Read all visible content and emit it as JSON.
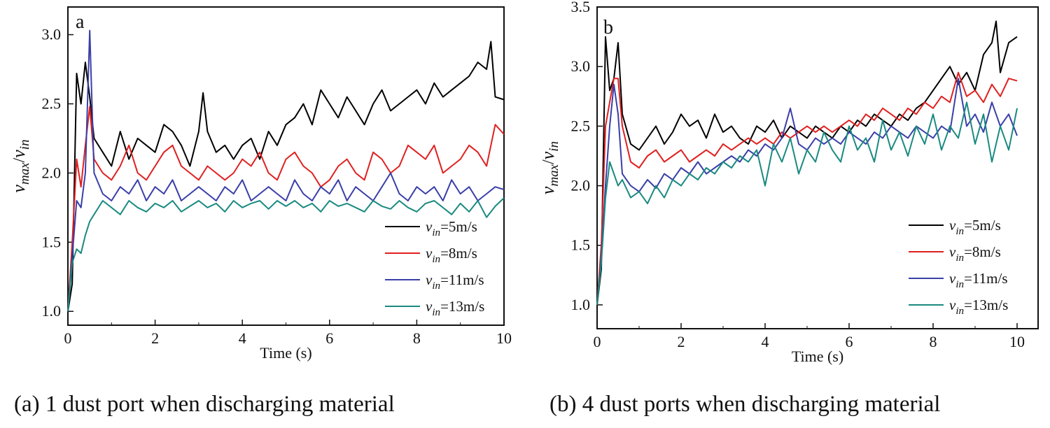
{
  "captions": {
    "a": "(a) 1 dust port when discharging material",
    "b": "(b) 4 dust ports when discharging material"
  },
  "chart_data": [
    {
      "type": "line",
      "panel_label": "a",
      "xlabel": "Time (s)",
      "ylabel_base": "v",
      "ylabel_num_sub": "max",
      "ylabel_den_sub": "in",
      "xlim": [
        0,
        10
      ],
      "ylim": [
        0.9,
        3.2
      ],
      "xticks": [
        0,
        2,
        4,
        6,
        8,
        10
      ],
      "yticks": [
        1.0,
        1.5,
        2.0,
        2.5,
        3.0
      ],
      "ytick_labels": [
        "1.0",
        "1.5",
        "2.0",
        "2.5",
        "3.0"
      ],
      "grid": false,
      "legend_position": "bottom-right",
      "series": [
        {
          "name": "5m/s",
          "legend_prefix": "v",
          "legend_sub": "in",
          "legend_value": "=5m/s",
          "color": "#000000",
          "x": [
            0,
            0.1,
            0.2,
            0.3,
            0.4,
            0.5,
            0.6,
            0.8,
            1,
            1.2,
            1.4,
            1.6,
            1.8,
            2,
            2.2,
            2.4,
            2.6,
            2.8,
            3,
            3.1,
            3.2,
            3.4,
            3.6,
            3.8,
            4,
            4.2,
            4.4,
            4.6,
            4.8,
            5,
            5.2,
            5.4,
            5.6,
            5.8,
            6,
            6.2,
            6.4,
            6.6,
            6.8,
            7,
            7.2,
            7.4,
            7.6,
            7.8,
            8,
            8.2,
            8.4,
            8.6,
            8.8,
            9,
            9.2,
            9.4,
            9.6,
            9.7,
            9.8,
            10
          ],
          "y": [
            1.0,
            1.2,
            2.72,
            2.5,
            2.8,
            2.55,
            2.25,
            2.15,
            2.05,
            2.3,
            2.1,
            2.25,
            2.2,
            2.15,
            2.35,
            2.3,
            2.2,
            2.05,
            2.3,
            2.58,
            2.3,
            2.15,
            2.2,
            2.1,
            2.2,
            2.25,
            2.1,
            2.3,
            2.2,
            2.35,
            2.4,
            2.5,
            2.35,
            2.6,
            2.5,
            2.4,
            2.55,
            2.45,
            2.35,
            2.5,
            2.6,
            2.45,
            2.5,
            2.55,
            2.6,
            2.5,
            2.65,
            2.55,
            2.6,
            2.65,
            2.7,
            2.8,
            2.75,
            2.95,
            2.55,
            2.53
          ]
        },
        {
          "name": "8m/s",
          "legend_prefix": "v",
          "legend_sub": "in",
          "legend_value": "=8m/s",
          "color": "#e02020",
          "x": [
            0,
            0.1,
            0.2,
            0.3,
            0.4,
            0.5,
            0.6,
            0.8,
            1,
            1.2,
            1.4,
            1.6,
            1.8,
            2,
            2.2,
            2.4,
            2.6,
            2.8,
            3,
            3.2,
            3.4,
            3.6,
            3.8,
            4,
            4.2,
            4.4,
            4.6,
            4.8,
            5,
            5.2,
            5.4,
            5.6,
            5.8,
            6,
            6.2,
            6.4,
            6.6,
            6.8,
            7,
            7.2,
            7.4,
            7.6,
            7.8,
            8,
            8.2,
            8.4,
            8.6,
            8.8,
            9,
            9.2,
            9.4,
            9.6,
            9.8,
            10
          ],
          "y": [
            1.0,
            1.5,
            2.1,
            1.9,
            2.2,
            2.48,
            2.1,
            2.0,
            1.95,
            2.05,
            2.2,
            2.0,
            1.95,
            2.05,
            2.15,
            2.2,
            2.05,
            2.0,
            1.95,
            2.05,
            2.0,
            1.95,
            2.0,
            2.1,
            2.05,
            2.15,
            2.0,
            1.95,
            2.1,
            2.15,
            2.05,
            2.0,
            1.9,
            1.95,
            2.05,
            2.1,
            2.0,
            1.95,
            2.15,
            2.1,
            2.0,
            2.05,
            2.2,
            2.15,
            2.1,
            2.2,
            2.0,
            2.05,
            2.1,
            2.2,
            2.15,
            2.05,
            2.35,
            2.28
          ]
        },
        {
          "name": "11m/s",
          "legend_prefix": "v",
          "legend_sub": "in",
          "legend_value": "=11m/s",
          "color": "#3a3fa8",
          "x": [
            0,
            0.1,
            0.2,
            0.3,
            0.4,
            0.5,
            0.6,
            0.8,
            1,
            1.2,
            1.4,
            1.6,
            1.8,
            2,
            2.2,
            2.4,
            2.6,
            2.8,
            3,
            3.2,
            3.4,
            3.6,
            3.8,
            4,
            4.2,
            4.4,
            4.6,
            4.8,
            5,
            5.2,
            5.4,
            5.6,
            5.8,
            6,
            6.2,
            6.4,
            6.6,
            6.8,
            7,
            7.2,
            7.4,
            7.6,
            7.8,
            8,
            8.2,
            8.4,
            8.6,
            8.8,
            9,
            9.2,
            9.4,
            9.6,
            9.8,
            10
          ],
          "y": [
            1.0,
            1.4,
            1.8,
            1.75,
            2.0,
            3.03,
            2.0,
            1.85,
            1.8,
            1.9,
            1.85,
            1.95,
            1.8,
            1.9,
            1.85,
            1.95,
            1.8,
            1.85,
            1.9,
            1.85,
            1.8,
            1.9,
            1.85,
            1.95,
            1.8,
            1.85,
            1.9,
            1.85,
            1.8,
            1.95,
            1.85,
            1.8,
            1.9,
            1.85,
            1.95,
            1.8,
            1.9,
            1.85,
            1.8,
            1.9,
            2.0,
            1.85,
            1.8,
            1.9,
            1.85,
            1.9,
            1.8,
            1.95,
            1.85,
            1.9,
            1.8,
            1.85,
            1.9,
            1.88
          ]
        },
        {
          "name": "13m/s",
          "legend_prefix": "v",
          "legend_sub": "in",
          "legend_value": "=13m/s",
          "color": "#1a8a80",
          "x": [
            0,
            0.1,
            0.2,
            0.3,
            0.4,
            0.5,
            0.6,
            0.8,
            1,
            1.2,
            1.4,
            1.6,
            1.8,
            2,
            2.2,
            2.4,
            2.6,
            2.8,
            3,
            3.2,
            3.4,
            3.6,
            3.8,
            4,
            4.2,
            4.4,
            4.6,
            4.8,
            5,
            5.2,
            5.4,
            5.6,
            5.8,
            6,
            6.2,
            6.4,
            6.6,
            6.8,
            7,
            7.2,
            7.4,
            7.6,
            7.8,
            8,
            8.2,
            8.4,
            8.6,
            8.8,
            9,
            9.2,
            9.4,
            9.6,
            9.8,
            10
          ],
          "y": [
            1.0,
            1.35,
            1.45,
            1.42,
            1.55,
            1.65,
            1.7,
            1.8,
            1.75,
            1.7,
            1.8,
            1.75,
            1.72,
            1.78,
            1.75,
            1.8,
            1.72,
            1.76,
            1.8,
            1.75,
            1.78,
            1.72,
            1.8,
            1.75,
            1.78,
            1.8,
            1.74,
            1.8,
            1.76,
            1.8,
            1.75,
            1.78,
            1.72,
            1.8,
            1.76,
            1.78,
            1.75,
            1.72,
            1.8,
            1.76,
            1.74,
            1.8,
            1.75,
            1.72,
            1.78,
            1.8,
            1.75,
            1.7,
            1.78,
            1.72,
            1.8,
            1.68,
            1.76,
            1.82
          ]
        }
      ]
    },
    {
      "type": "line",
      "panel_label": "b",
      "xlabel": "Time (s)",
      "ylabel_base": "v",
      "ylabel_num_sub": "max",
      "ylabel_den_sub": "in",
      "xlim": [
        0,
        10.5
      ],
      "ylim": [
        0.8,
        3.5
      ],
      "xticks": [
        0,
        2,
        4,
        6,
        8,
        10
      ],
      "yticks": [
        1.0,
        1.5,
        2.0,
        2.5,
        3.0,
        3.5
      ],
      "ytick_labels": [
        "1.0",
        "1.5",
        "2.0",
        "2.5",
        "3.0",
        "3.5"
      ],
      "grid": false,
      "legend_position": "bottom-right",
      "series": [
        {
          "name": "5m/s",
          "legend_prefix": "v",
          "legend_sub": "in",
          "legend_value": "=5m/s",
          "color": "#000000",
          "x": [
            0,
            0.1,
            0.2,
            0.3,
            0.4,
            0.5,
            0.6,
            0.8,
            1,
            1.2,
            1.4,
            1.6,
            1.8,
            2,
            2.2,
            2.4,
            2.6,
            2.8,
            3,
            3.2,
            3.4,
            3.6,
            3.8,
            4,
            4.2,
            4.4,
            4.6,
            4.8,
            5,
            5.2,
            5.4,
            5.6,
            5.8,
            6,
            6.2,
            6.4,
            6.6,
            6.8,
            7,
            7.2,
            7.4,
            7.6,
            7.8,
            8,
            8.2,
            8.4,
            8.6,
            8.8,
            9,
            9.2,
            9.4,
            9.5,
            9.6,
            9.8,
            10
          ],
          "y": [
            1.0,
            1.3,
            3.25,
            2.8,
            2.9,
            3.2,
            2.6,
            2.35,
            2.3,
            2.4,
            2.5,
            2.35,
            2.45,
            2.6,
            2.5,
            2.55,
            2.4,
            2.6,
            2.45,
            2.5,
            2.4,
            2.35,
            2.5,
            2.45,
            2.55,
            2.4,
            2.5,
            2.45,
            2.4,
            2.5,
            2.45,
            2.4,
            2.5,
            2.45,
            2.55,
            2.5,
            2.6,
            2.55,
            2.5,
            2.6,
            2.55,
            2.65,
            2.7,
            2.8,
            2.9,
            3.0,
            2.85,
            2.95,
            2.8,
            3.1,
            3.2,
            3.38,
            2.95,
            3.2,
            3.25
          ]
        },
        {
          "name": "8m/s",
          "legend_prefix": "v",
          "legend_sub": "in",
          "legend_value": "=8m/s",
          "color": "#e02020",
          "x": [
            0,
            0.1,
            0.2,
            0.3,
            0.4,
            0.5,
            0.6,
            0.8,
            1,
            1.2,
            1.4,
            1.6,
            1.8,
            2,
            2.2,
            2.4,
            2.6,
            2.8,
            3,
            3.2,
            3.4,
            3.6,
            3.8,
            4,
            4.2,
            4.4,
            4.6,
            4.8,
            5,
            5.2,
            5.4,
            5.6,
            5.8,
            6,
            6.2,
            6.4,
            6.6,
            6.8,
            7,
            7.2,
            7.4,
            7.6,
            7.8,
            8,
            8.2,
            8.4,
            8.6,
            8.8,
            9,
            9.2,
            9.4,
            9.6,
            9.8,
            10
          ],
          "y": [
            1.0,
            1.5,
            2.5,
            2.7,
            2.9,
            2.9,
            2.5,
            2.2,
            2.15,
            2.25,
            2.3,
            2.2,
            2.25,
            2.3,
            2.2,
            2.25,
            2.3,
            2.25,
            2.35,
            2.3,
            2.35,
            2.4,
            2.35,
            2.4,
            2.35,
            2.45,
            2.4,
            2.45,
            2.5,
            2.45,
            2.5,
            2.45,
            2.5,
            2.55,
            2.5,
            2.6,
            2.55,
            2.65,
            2.6,
            2.55,
            2.65,
            2.6,
            2.7,
            2.65,
            2.75,
            2.7,
            2.95,
            2.75,
            2.8,
            2.7,
            2.85,
            2.75,
            2.9,
            2.88
          ]
        },
        {
          "name": "11m/s",
          "legend_prefix": "v",
          "legend_sub": "in",
          "legend_value": "=11m/s",
          "color": "#3a3fa8",
          "x": [
            0,
            0.1,
            0.2,
            0.3,
            0.4,
            0.5,
            0.6,
            0.8,
            1,
            1.2,
            1.4,
            1.6,
            1.8,
            2,
            2.2,
            2.4,
            2.6,
            2.8,
            3,
            3.2,
            3.4,
            3.6,
            3.8,
            4,
            4.2,
            4.4,
            4.6,
            4.8,
            5,
            5.2,
            5.4,
            5.6,
            5.8,
            6,
            6.2,
            6.4,
            6.6,
            6.8,
            7,
            7.2,
            7.4,
            7.6,
            7.8,
            8,
            8.2,
            8.4,
            8.6,
            8.8,
            9,
            9.2,
            9.4,
            9.6,
            9.8,
            10
          ],
          "y": [
            1.0,
            1.4,
            2.0,
            2.5,
            2.85,
            2.6,
            2.1,
            2.0,
            1.95,
            2.05,
            1.98,
            2.1,
            2.05,
            2.15,
            2.1,
            2.2,
            2.1,
            2.15,
            2.2,
            2.25,
            2.2,
            2.3,
            2.25,
            2.35,
            2.3,
            2.4,
            2.65,
            2.35,
            2.3,
            2.4,
            2.35,
            2.4,
            2.35,
            2.45,
            2.4,
            2.35,
            2.45,
            2.4,
            2.5,
            2.45,
            2.4,
            2.5,
            2.45,
            2.4,
            2.5,
            2.45,
            2.9,
            2.5,
            2.6,
            2.45,
            2.7,
            2.5,
            2.6,
            2.42
          ]
        },
        {
          "name": "13m/s",
          "legend_prefix": "v",
          "legend_sub": "in",
          "legend_value": "=13m/s",
          "color": "#1a8a80",
          "x": [
            0,
            0.1,
            0.2,
            0.3,
            0.4,
            0.5,
            0.6,
            0.8,
            1,
            1.2,
            1.4,
            1.6,
            1.8,
            2,
            2.2,
            2.4,
            2.6,
            2.8,
            3,
            3.2,
            3.4,
            3.6,
            3.8,
            4,
            4.2,
            4.4,
            4.6,
            4.8,
            5,
            5.2,
            5.4,
            5.6,
            5.8,
            6,
            6.2,
            6.4,
            6.6,
            6.8,
            7,
            7.2,
            7.4,
            7.6,
            7.8,
            8,
            8.2,
            8.4,
            8.6,
            8.8,
            9,
            9.2,
            9.4,
            9.6,
            9.8,
            10
          ],
          "y": [
            1.0,
            1.35,
            1.9,
            2.2,
            2.1,
            2.0,
            2.05,
            1.9,
            1.95,
            1.85,
            2.0,
            1.9,
            2.05,
            2.0,
            2.1,
            2.05,
            2.15,
            2.1,
            2.2,
            2.15,
            2.25,
            2.2,
            2.3,
            2.0,
            2.35,
            2.2,
            2.4,
            2.1,
            2.3,
            2.2,
            2.45,
            2.3,
            2.2,
            2.5,
            2.3,
            2.4,
            2.2,
            2.55,
            2.3,
            2.45,
            2.25,
            2.5,
            2.35,
            2.6,
            2.3,
            2.5,
            2.4,
            2.7,
            2.35,
            2.6,
            2.2,
            2.5,
            2.3,
            2.65
          ]
        }
      ]
    }
  ]
}
